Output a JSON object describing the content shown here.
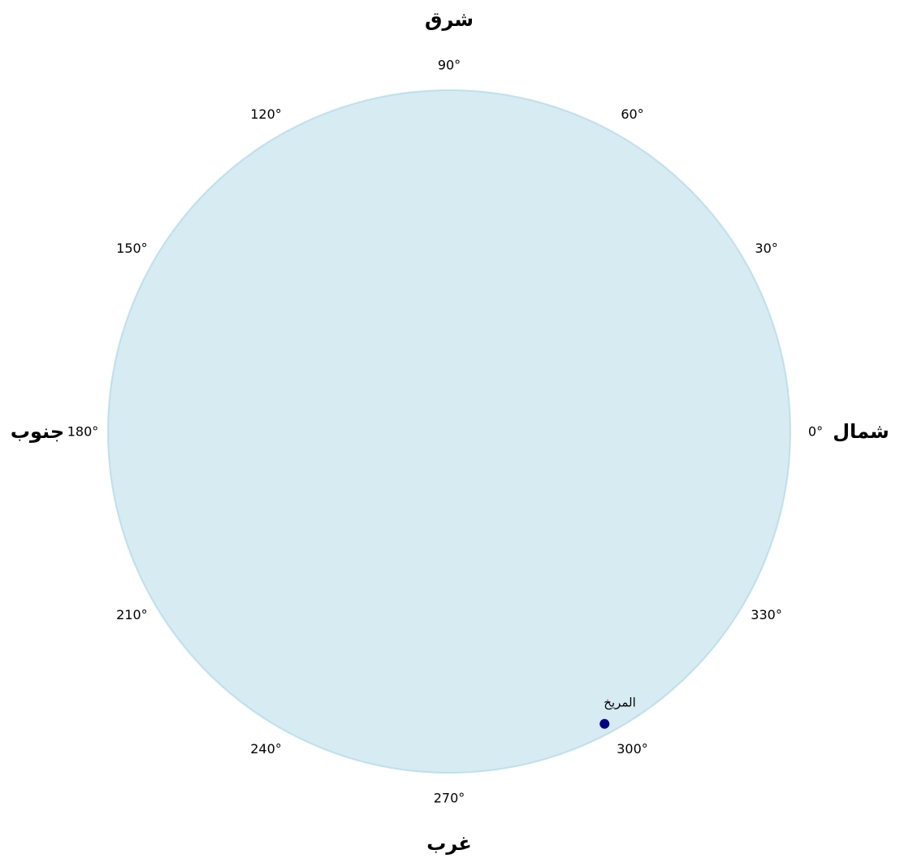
{
  "chart_data": {
    "type": "scatter",
    "projection": "polar",
    "theta_zero_location": "east",
    "theta_direction": "counterclockwise",
    "disk_color": "#add8e6",
    "disk_alpha": 0.5,
    "point_color": "#00008b",
    "angle_ticks": [
      0,
      30,
      60,
      90,
      120,
      150,
      180,
      210,
      240,
      270,
      300,
      330
    ],
    "angle_tick_labels": [
      "0°",
      "30°",
      "60°",
      "90°",
      "120°",
      "150°",
      "180°",
      "210°",
      "240°",
      "270°",
      "300°",
      "330°"
    ],
    "directions": [
      {
        "name": "north",
        "angle": 0,
        "label": "شمال"
      },
      {
        "name": "east",
        "angle": 90,
        "label": "شرق"
      },
      {
        "name": "south",
        "angle": 180,
        "label": "جنوب"
      },
      {
        "name": "west",
        "angle": 270,
        "label": "غرب"
      }
    ],
    "points": [
      {
        "label": "المريخ",
        "azimuth": 298,
        "r": 0.97
      }
    ],
    "rlim": [
      0,
      1
    ]
  }
}
